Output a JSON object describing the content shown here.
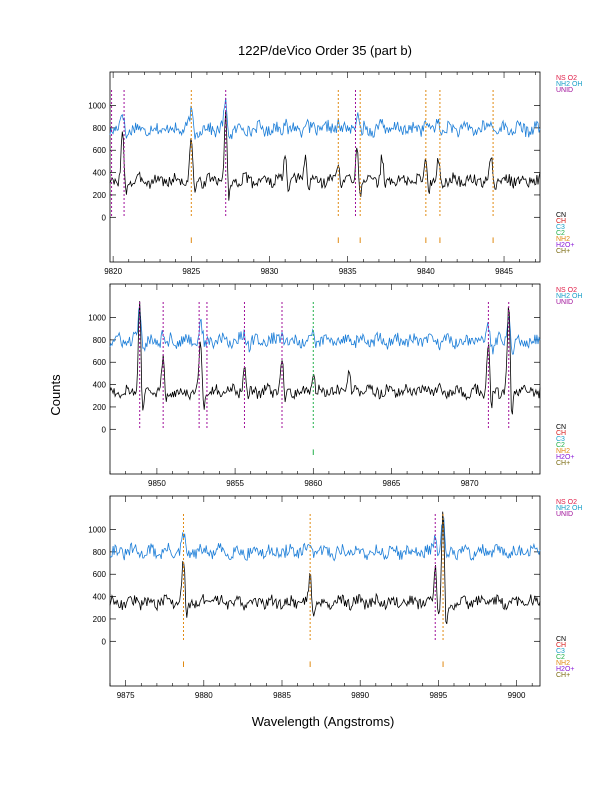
{
  "title": "122P/deVico Order 35 (part b)",
  "xlabel": "Wavelength (Angstroms)",
  "ylabel": "Counts",
  "colors": {
    "spectrum": "#000000",
    "comparison": "#1e7fd8",
    "NS O2": "#e0204a",
    "NH2 OH": "#1aa0c8",
    "UNID": "#a0119a",
    "CN": "#000000",
    "CH": "#d81e1e",
    "C3": "#1aa0c8",
    "C2": "#22b04a",
    "NH2": "#e08a12",
    "H2O+": "#8a1ad8",
    "CH+": "#7a6a10"
  },
  "legend_top": [
    "NS O2",
    "NH2 OH",
    "UNID"
  ],
  "legend_bottom": [
    "CN",
    "CH",
    "C3",
    "C2",
    "NH2",
    "H2O+",
    "CH+"
  ],
  "chart_data": [
    {
      "type": "line",
      "xlim": [
        9819.8,
        9847.3
      ],
      "ylim": [
        -400,
        1300
      ],
      "yticks": [
        0,
        200,
        400,
        600,
        800,
        1000
      ],
      "xticks": [
        9820,
        9825,
        9830,
        9835,
        9840,
        9845
      ],
      "spectrum_baseline": 330,
      "comparison_baseline": 790,
      "peaks": [
        {
          "x": 9820.6,
          "height": 420
        },
        {
          "x": 9825.0,
          "height": 390
        },
        {
          "x": 9827.2,
          "height": 600
        },
        {
          "x": 9831.0,
          "height": 220
        },
        {
          "x": 9832.3,
          "height": 250
        },
        {
          "x": 9834.4,
          "height": 180
        },
        {
          "x": 9835.6,
          "height": 350
        },
        {
          "x": 9837.2,
          "height": 200
        },
        {
          "x": 9840.0,
          "height": 230
        },
        {
          "x": 9840.8,
          "height": 190
        },
        {
          "x": 9844.2,
          "height": 210
        }
      ],
      "line_markers": [
        {
          "x": 9819.9,
          "species": "UNID"
        },
        {
          "x": 9820.7,
          "species": "UNID"
        },
        {
          "x": 9825.0,
          "species": "NH2"
        },
        {
          "x": 9827.2,
          "species": "UNID"
        },
        {
          "x": 9834.4,
          "species": "NH2"
        },
        {
          "x": 9835.5,
          "species": "UNID"
        },
        {
          "x": 9835.8,
          "species": "NH2"
        },
        {
          "x": 9840.0,
          "species": "NH2"
        },
        {
          "x": 9840.9,
          "species": "NH2"
        },
        {
          "x": 9844.3,
          "species": "NH2"
        }
      ],
      "tick_markers": [
        {
          "x": 9825.0,
          "species": "NH2"
        },
        {
          "x": 9834.4,
          "species": "NH2"
        },
        {
          "x": 9835.8,
          "species": "NH2"
        },
        {
          "x": 9840.0,
          "species": "NH2"
        },
        {
          "x": 9840.9,
          "species": "NH2"
        },
        {
          "x": 9844.3,
          "species": "NH2"
        }
      ]
    },
    {
      "type": "line",
      "xlim": [
        9847.0,
        9874.5
      ],
      "ylim": [
        -400,
        1300
      ],
      "yticks": [
        0,
        200,
        400,
        600,
        800,
        1000
      ],
      "xticks": [
        9850,
        9855,
        9860,
        9865,
        9870
      ],
      "spectrum_baseline": 340,
      "comparison_baseline": 790,
      "peaks": [
        {
          "x": 9848.9,
          "height": 800
        },
        {
          "x": 9850.4,
          "height": 300
        },
        {
          "x": 9852.8,
          "height": 460
        },
        {
          "x": 9855.6,
          "height": 230
        },
        {
          "x": 9858.0,
          "height": 300
        },
        {
          "x": 9860.0,
          "height": 200
        },
        {
          "x": 9862.3,
          "height": 180
        },
        {
          "x": 9871.2,
          "height": 480
        },
        {
          "x": 9872.5,
          "height": 800
        }
      ],
      "line_markers": [
        {
          "x": 9848.9,
          "species": "UNID"
        },
        {
          "x": 9850.4,
          "species": "UNID"
        },
        {
          "x": 9852.7,
          "species": "UNID"
        },
        {
          "x": 9853.2,
          "species": "UNID"
        },
        {
          "x": 9855.6,
          "species": "UNID"
        },
        {
          "x": 9858.0,
          "species": "UNID"
        },
        {
          "x": 9860.0,
          "species": "C2"
        },
        {
          "x": 9871.2,
          "species": "UNID"
        },
        {
          "x": 9872.5,
          "species": "UNID"
        }
      ],
      "tick_markers": [
        {
          "x": 9860.0,
          "species": "C2"
        }
      ]
    },
    {
      "type": "line",
      "xlim": [
        9874.0,
        9901.5
      ],
      "ylim": [
        -400,
        1300
      ],
      "yticks": [
        0,
        200,
        400,
        600,
        800,
        1000
      ],
      "xticks": [
        9875,
        9880,
        9885,
        9890,
        9895,
        9900
      ],
      "spectrum_baseline": 350,
      "comparison_baseline": 800,
      "peaks": [
        {
          "x": 9878.7,
          "height": 380
        },
        {
          "x": 9886.8,
          "height": 260
        },
        {
          "x": 9894.8,
          "height": 350
        },
        {
          "x": 9895.3,
          "height": 800
        }
      ],
      "line_markers": [
        {
          "x": 9878.7,
          "species": "NH2"
        },
        {
          "x": 9886.8,
          "species": "NH2"
        },
        {
          "x": 9894.8,
          "species": "UNID"
        },
        {
          "x": 9895.3,
          "species": "NH2"
        }
      ],
      "tick_markers": [
        {
          "x": 9878.7,
          "species": "NH2"
        },
        {
          "x": 9886.8,
          "species": "NH2"
        },
        {
          "x": 9895.3,
          "species": "NH2"
        }
      ]
    }
  ]
}
